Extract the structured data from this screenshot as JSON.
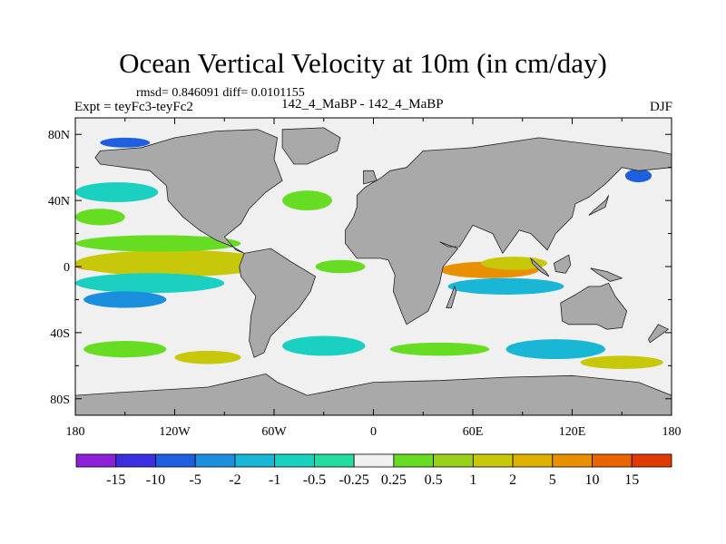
{
  "title": "Ocean Vertical Velocity at 10m (in cm/day)",
  "stats": "rmsd= 0.846091 diff= 0.0101155",
  "experiment": "Expt = teyFc3-teyFc2",
  "experiment_names": "142_4_MaBP - 142_4_MaBP",
  "season": "DJF",
  "y_ticks": [
    {
      "label": "80N",
      "lat": 80
    },
    {
      "label": "40N",
      "lat": 40
    },
    {
      "label": "0",
      "lat": 0
    },
    {
      "label": "40S",
      "lat": -40
    },
    {
      "label": "80S",
      "lat": -80
    }
  ],
  "x_ticks": [
    {
      "label": "180",
      "lon": -180
    },
    {
      "label": "120W",
      "lon": -120
    },
    {
      "label": "60W",
      "lon": -60
    },
    {
      "label": "0",
      "lon": 0
    },
    {
      "label": "60E",
      "lon": 60
    },
    {
      "label": "120E",
      "lon": 120
    },
    {
      "label": "180",
      "lon": 180
    }
  ],
  "colorbar": {
    "colors": [
      "#8b20d8",
      "#3b2ee0",
      "#1e5fe0",
      "#1a8fe0",
      "#19b6d6",
      "#1ad0c0",
      "#22dca0",
      "#f0f0f0",
      "#66dd22",
      "#99d018",
      "#c8c80a",
      "#e0b000",
      "#e89000",
      "#e86400",
      "#e03a00"
    ],
    "labels": [
      "-15",
      "-10",
      "-5",
      "-2",
      "-1",
      "-0.5",
      "-0.25",
      "0.25",
      "0.5",
      "1",
      "2",
      "5",
      "10",
      "15"
    ]
  },
  "map": {
    "land_color": "#a9a9a9",
    "ocean_color": "#f0f0f0",
    "continents": [
      {
        "name": "north-america",
        "points": [
          [
            -165,
            70
          ],
          [
            -140,
            72
          ],
          [
            -120,
            78
          ],
          [
            -95,
            82
          ],
          [
            -70,
            83
          ],
          [
            -58,
            78
          ],
          [
            -60,
            65
          ],
          [
            -55,
            52
          ],
          [
            -65,
            45
          ],
          [
            -75,
            35
          ],
          [
            -80,
            26
          ],
          [
            -90,
            18
          ],
          [
            -83,
            10
          ],
          [
            -78,
            8
          ],
          [
            -85,
            12
          ],
          [
            -95,
            16
          ],
          [
            -105,
            22
          ],
          [
            -115,
            30
          ],
          [
            -124,
            40
          ],
          [
            -125,
            49
          ],
          [
            -135,
            58
          ],
          [
            -150,
            60
          ],
          [
            -165,
            62
          ],
          [
            -168,
            66
          ]
        ]
      },
      {
        "name": "greenland",
        "points": [
          [
            -55,
            83
          ],
          [
            -30,
            84
          ],
          [
            -20,
            78
          ],
          [
            -22,
            70
          ],
          [
            -40,
            62
          ],
          [
            -48,
            62
          ],
          [
            -55,
            72
          ]
        ]
      },
      {
        "name": "south-america",
        "points": [
          [
            -78,
            8
          ],
          [
            -62,
            11
          ],
          [
            -50,
            3
          ],
          [
            -35,
            -6
          ],
          [
            -38,
            -15
          ],
          [
            -45,
            -25
          ],
          [
            -55,
            -35
          ],
          [
            -62,
            -42
          ],
          [
            -66,
            -52
          ],
          [
            -72,
            -55
          ],
          [
            -75,
            -45
          ],
          [
            -74,
            -30
          ],
          [
            -71,
            -18
          ],
          [
            -80,
            -6
          ],
          [
            -81,
            0
          ]
        ]
      },
      {
        "name": "eurasia-africa",
        "points": [
          [
            -10,
            36
          ],
          [
            -10,
            43
          ],
          [
            -5,
            48
          ],
          [
            5,
            54
          ],
          [
            10,
            58
          ],
          [
            20,
            60
          ],
          [
            30,
            70
          ],
          [
            60,
            72
          ],
          [
            100,
            78
          ],
          [
            140,
            73
          ],
          [
            170,
            70
          ],
          [
            180,
            68
          ],
          [
            180,
            60
          ],
          [
            160,
            58
          ],
          [
            150,
            60
          ],
          [
            140,
            50
          ],
          [
            130,
            42
          ],
          [
            122,
            38
          ],
          [
            120,
            30
          ],
          [
            110,
            20
          ],
          [
            105,
            10
          ],
          [
            100,
            15
          ],
          [
            95,
            20
          ],
          [
            88,
            22
          ],
          [
            78,
            8
          ],
          [
            72,
            20
          ],
          [
            60,
            25
          ],
          [
            52,
            12
          ],
          [
            45,
            12
          ],
          [
            40,
            15
          ],
          [
            51,
            11
          ],
          [
            42,
            0
          ],
          [
            40,
            -10
          ],
          [
            36,
            -20
          ],
          [
            33,
            -27
          ],
          [
            20,
            -35
          ],
          [
            17,
            -28
          ],
          [
            12,
            -15
          ],
          [
            13,
            -5
          ],
          [
            9,
            4
          ],
          [
            4,
            5
          ],
          [
            -10,
            5
          ],
          [
            -17,
            14
          ],
          [
            -17,
            22
          ],
          [
            -12,
            30
          ]
        ]
      },
      {
        "name": "australia",
        "points": [
          [
            113,
            -22
          ],
          [
            122,
            -17
          ],
          [
            130,
            -12
          ],
          [
            137,
            -12
          ],
          [
            142,
            -10
          ],
          [
            146,
            -18
          ],
          [
            153,
            -27
          ],
          [
            150,
            -37
          ],
          [
            141,
            -38
          ],
          [
            135,
            -35
          ],
          [
            118,
            -35
          ],
          [
            114,
            -33
          ]
        ]
      },
      {
        "name": "antarctica",
        "points": [
          [
            -180,
            -78
          ],
          [
            -150,
            -76
          ],
          [
            -100,
            -73
          ],
          [
            -65,
            -65
          ],
          [
            -58,
            -70
          ],
          [
            -40,
            -78
          ],
          [
            0,
            -70
          ],
          [
            40,
            -69
          ],
          [
            80,
            -67
          ],
          [
            120,
            -66
          ],
          [
            160,
            -70
          ],
          [
            180,
            -78
          ],
          [
            180,
            -90
          ],
          [
            -180,
            -90
          ]
        ]
      },
      {
        "name": "borneo",
        "points": [
          [
            109,
            2
          ],
          [
            118,
            7
          ],
          [
            119,
            1
          ],
          [
            116,
            -4
          ],
          [
            110,
            -3
          ]
        ]
      },
      {
        "name": "sumatra",
        "points": [
          [
            95,
            5
          ],
          [
            104,
            -3
          ],
          [
            106,
            -6
          ],
          [
            101,
            -3
          ],
          [
            96,
            2
          ]
        ]
      },
      {
        "name": "new-guinea",
        "points": [
          [
            131,
            -1
          ],
          [
            141,
            -3
          ],
          [
            150,
            -7
          ],
          [
            143,
            -9
          ],
          [
            135,
            -4
          ]
        ]
      },
      {
        "name": "madagascar",
        "points": [
          [
            44,
            -25
          ],
          [
            47,
            -25
          ],
          [
            50,
            -15
          ],
          [
            49,
            -12
          ]
        ]
      },
      {
        "name": "japan",
        "points": [
          [
            130,
            31
          ],
          [
            140,
            36
          ],
          [
            142,
            43
          ],
          [
            140,
            40
          ],
          [
            133,
            34
          ]
        ]
      },
      {
        "name": "uk",
        "points": [
          [
            -6,
            50
          ],
          [
            2,
            52
          ],
          [
            0,
            58
          ],
          [
            -6,
            58
          ]
        ]
      },
      {
        "name": "new-zealand",
        "points": [
          [
            167,
            -46
          ],
          [
            174,
            -41
          ],
          [
            178,
            -38
          ],
          [
            172,
            -35
          ],
          [
            166,
            -44
          ]
        ]
      }
    ],
    "anomalies": [
      {
        "name": "pacific-equatorial-upwelling",
        "lon": -130,
        "lat": 0,
        "rx": 50,
        "ry": 4,
        "color": "#e89000"
      },
      {
        "name": "pacific-eq-band-yellow",
        "lon": -120,
        "lat": 2,
        "rx": 60,
        "ry": 8,
        "color": "#c8c80a"
      },
      {
        "name": "pacific-north-band-green",
        "lon": -130,
        "lat": 14,
        "rx": 50,
        "ry": 5,
        "color": "#66dd22"
      },
      {
        "name": "pacific-south-band-cyan",
        "lon": -135,
        "lat": -10,
        "rx": 45,
        "ry": 6,
        "color": "#1ad0c0"
      },
      {
        "name": "pacific-south-band-blue",
        "lon": -150,
        "lat": -20,
        "rx": 25,
        "ry": 5,
        "color": "#1a8fe0"
      },
      {
        "name": "indian-eq-orange",
        "lon": 70,
        "lat": -2,
        "rx": 30,
        "ry": 5,
        "color": "#e89000"
      },
      {
        "name": "indian-eq-yellow",
        "lon": 85,
        "lat": 2,
        "rx": 20,
        "ry": 4,
        "color": "#c8c80a"
      },
      {
        "name": "indian-south-cyan",
        "lon": 80,
        "lat": -12,
        "rx": 35,
        "ry": 5,
        "color": "#19b6d6"
      },
      {
        "name": "atlantic-eq-green",
        "lon": -20,
        "lat": 0,
        "rx": 15,
        "ry": 4,
        "color": "#66dd22"
      },
      {
        "name": "southern-ocean-green-1",
        "lon": -150,
        "lat": -50,
        "rx": 25,
        "ry": 5,
        "color": "#66dd22"
      },
      {
        "name": "southern-ocean-yellow-1",
        "lon": -100,
        "lat": -55,
        "rx": 20,
        "ry": 4,
        "color": "#c8c80a"
      },
      {
        "name": "southern-ocean-cyan-1",
        "lon": -30,
        "lat": -48,
        "rx": 25,
        "ry": 6,
        "color": "#1ad0c0"
      },
      {
        "name": "southern-ocean-green-2",
        "lon": 40,
        "lat": -50,
        "rx": 30,
        "ry": 4,
        "color": "#66dd22"
      },
      {
        "name": "southern-ocean-cyan-2",
        "lon": 110,
        "lat": -50,
        "rx": 30,
        "ry": 6,
        "color": "#19b6d6"
      },
      {
        "name": "southern-ocean-yellow-2",
        "lon": 150,
        "lat": -58,
        "rx": 25,
        "ry": 4,
        "color": "#c8c80a"
      },
      {
        "name": "north-pacific-cyan",
        "lon": -155,
        "lat": 45,
        "rx": 25,
        "ry": 6,
        "color": "#1ad0c0"
      },
      {
        "name": "north-pacific-green",
        "lon": -165,
        "lat": 30,
        "rx": 15,
        "ry": 5,
        "color": "#66dd22"
      },
      {
        "name": "north-pacific-west-blue",
        "lon": 160,
        "lat": 55,
        "rx": 8,
        "ry": 4,
        "color": "#1e5fe0"
      },
      {
        "name": "north-atlantic-green",
        "lon": -40,
        "lat": 40,
        "rx": 15,
        "ry": 6,
        "color": "#66dd22"
      },
      {
        "name": "arctic-blue",
        "lon": -150,
        "lat": 75,
        "rx": 15,
        "ry": 3,
        "color": "#1e5fe0"
      }
    ]
  }
}
